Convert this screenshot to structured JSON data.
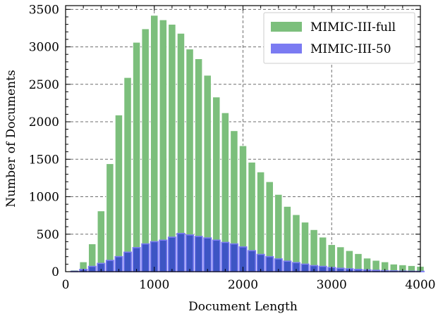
{
  "chart_data": {
    "type": "bar",
    "xlabel": "Document Length",
    "ylabel": "Number of Documents",
    "xlim": [
      0,
      4000
    ],
    "ylim": [
      0,
      3550
    ],
    "xticks": [
      0,
      1000,
      2000,
      3000,
      4000
    ],
    "yticks": [
      0,
      500,
      1000,
      1500,
      2000,
      2500,
      3000,
      3500
    ],
    "grid": true,
    "legend_position": "top-right",
    "bin_width": 100,
    "x": [
      100,
      200,
      300,
      400,
      500,
      600,
      700,
      800,
      900,
      1000,
      1100,
      1200,
      1300,
      1400,
      1500,
      1600,
      1700,
      1800,
      1900,
      2000,
      2100,
      2200,
      2300,
      2400,
      2500,
      2600,
      2700,
      2800,
      2900,
      3000,
      3100,
      3200,
      3300,
      3400,
      3500,
      3600,
      3700,
      3800,
      3900,
      4000
    ],
    "series": [
      {
        "name": "MIMIC-III-full",
        "color": "#7cbf7c",
        "edge": "#ffffff",
        "values": [
          20,
          130,
          370,
          810,
          1440,
          2090,
          2590,
          3060,
          3240,
          3420,
          3360,
          3300,
          3180,
          2970,
          2840,
          2620,
          2330,
          2120,
          1880,
          1680,
          1460,
          1330,
          1200,
          1030,
          870,
          760,
          660,
          560,
          460,
          360,
          330,
          280,
          240,
          180,
          150,
          130,
          100,
          90,
          80,
          70
        ]
      },
      {
        "name": "MIMIC-III-50",
        "color": "#7b7bf2",
        "inner_color": "#3d55c4",
        "edge": "#ffffff",
        "values": [
          5,
          30,
          70,
          110,
          150,
          200,
          260,
          320,
          370,
          400,
          420,
          460,
          510,
          490,
          470,
          450,
          420,
          390,
          370,
          330,
          280,
          230,
          200,
          170,
          140,
          120,
          100,
          80,
          70,
          55,
          45,
          38,
          30,
          24,
          18,
          14,
          11,
          8,
          6,
          5
        ]
      }
    ]
  }
}
